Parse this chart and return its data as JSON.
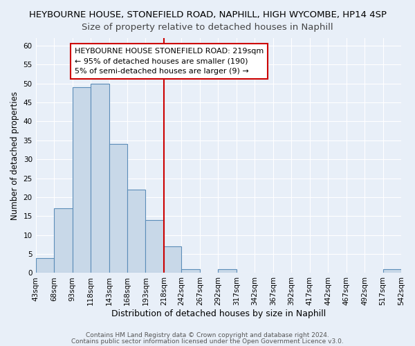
{
  "title_main": "HEYBOURNE HOUSE, STONEFIELD ROAD, NAPHILL, HIGH WYCOMBE, HP14 4SP",
  "title_sub": "Size of property relative to detached houses in Naphill",
  "xlabel": "Distribution of detached houses by size in Naphill",
  "ylabel": "Number of detached properties",
  "bar_edges": [
    43,
    68,
    93,
    118,
    143,
    168,
    193,
    218,
    242,
    267,
    292,
    317,
    342,
    367,
    392,
    417,
    442,
    467,
    492,
    517,
    542
  ],
  "bar_heights": [
    4,
    17,
    49,
    50,
    34,
    22,
    14,
    7,
    1,
    0,
    1,
    0,
    0,
    0,
    0,
    0,
    0,
    0,
    0,
    1
  ],
  "bar_color": "#c8d8e8",
  "bar_edge_color": "#5b8db8",
  "vline_x": 218,
  "vline_color": "#cc0000",
  "annotation_title": "HEYBOURNE HOUSE STONEFIELD ROAD: 219sqm",
  "annotation_line1": "← 95% of detached houses are smaller (190)",
  "annotation_line2": "5% of semi-detached houses are larger (9) →",
  "annotation_box_color": "#ffffff",
  "annotation_border_color": "#cc0000",
  "ylim": [
    0,
    62
  ],
  "yticks": [
    0,
    5,
    10,
    15,
    20,
    25,
    30,
    35,
    40,
    45,
    50,
    55,
    60
  ],
  "bg_color": "#e8eff8",
  "plot_bg_color": "#e8eff8",
  "footer1": "Contains HM Land Registry data © Crown copyright and database right 2024.",
  "footer2": "Contains public sector information licensed under the Open Government Licence v3.0.",
  "title_fontsize": 9.5,
  "subtitle_fontsize": 9.5,
  "xlabel_fontsize": 9,
  "ylabel_fontsize": 8.5,
  "tick_fontsize": 7.5,
  "footer_fontsize": 6.5,
  "annotation_title_fontsize": 8,
  "annotation_text_fontsize": 8
}
